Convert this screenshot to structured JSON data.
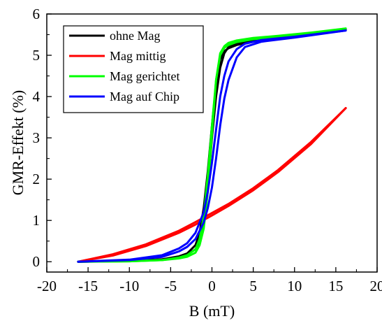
{
  "chart_data": {
    "type": "line",
    "xlabel": "B (mT)",
    "ylabel": "GMR-Effekt (%)",
    "xlim": [
      -20,
      20
    ],
    "ylim": [
      -0.25,
      6
    ],
    "xticks": [
      -20,
      -15,
      -10,
      -5,
      0,
      5,
      10,
      15,
      20
    ],
    "yticks": [
      0,
      1,
      2,
      3,
      4,
      5,
      6
    ],
    "x_tick_labels": [
      "-20",
      "-15",
      "-10",
      "-5",
      "0",
      "5",
      "10",
      "15",
      "20"
    ],
    "y_tick_labels": [
      "0",
      "1",
      "2",
      "3",
      "4",
      "5",
      "6"
    ],
    "grid": false,
    "legend_position": "top-left",
    "series": [
      {
        "name": "ohne Mag",
        "color": "#000000",
        "up": [
          [
            -16.2,
            0.0
          ],
          [
            -10,
            0.02
          ],
          [
            -6,
            0.06
          ],
          [
            -4,
            0.13
          ],
          [
            -3,
            0.2
          ],
          [
            -2,
            0.4
          ],
          [
            -1.5,
            0.7
          ],
          [
            -1,
            1.3
          ],
          [
            -0.5,
            2.2
          ],
          [
            0,
            3.3
          ],
          [
            0.5,
            4.3
          ],
          [
            1,
            4.9
          ],
          [
            1.5,
            5.1
          ],
          [
            2,
            5.17
          ],
          [
            3,
            5.25
          ],
          [
            5,
            5.33
          ],
          [
            8,
            5.4
          ],
          [
            12,
            5.5
          ],
          [
            16.2,
            5.62
          ]
        ],
        "down": [
          [
            16.2,
            5.62
          ],
          [
            12,
            5.52
          ],
          [
            8,
            5.42
          ],
          [
            5,
            5.35
          ],
          [
            3,
            5.28
          ],
          [
            2,
            5.2
          ],
          [
            1.5,
            5.05
          ],
          [
            1,
            4.7
          ],
          [
            0.5,
            4.0
          ],
          [
            0,
            3.0
          ],
          [
            -0.5,
            1.8
          ],
          [
            -1,
            0.9
          ],
          [
            -1.5,
            0.5
          ],
          [
            -2,
            0.3
          ],
          [
            -3,
            0.17
          ],
          [
            -4,
            0.11
          ],
          [
            -6,
            0.05
          ],
          [
            -10,
            0.02
          ],
          [
            -16.2,
            0.0
          ]
        ]
      },
      {
        "name": "Mag mittig",
        "color": "#ff0000",
        "up": [
          [
            -16.2,
            0.0
          ],
          [
            -12,
            0.18
          ],
          [
            -8,
            0.42
          ],
          [
            -4,
            0.75
          ],
          [
            -2,
            0.96
          ],
          [
            0,
            1.18
          ],
          [
            2,
            1.4
          ],
          [
            5,
            1.78
          ],
          [
            8,
            2.22
          ],
          [
            12,
            2.9
          ],
          [
            16.2,
            3.72
          ]
        ],
        "down": [
          [
            16.2,
            3.72
          ],
          [
            12,
            2.85
          ],
          [
            8,
            2.17
          ],
          [
            5,
            1.73
          ],
          [
            2,
            1.35
          ],
          [
            0,
            1.12
          ],
          [
            -2,
            0.9
          ],
          [
            -4,
            0.7
          ],
          [
            -8,
            0.38
          ],
          [
            -12,
            0.15
          ],
          [
            -16.2,
            0.0
          ]
        ]
      },
      {
        "name": "Mag gerichtet",
        "color": "#00ff00",
        "up": [
          [
            -16.2,
            0.0
          ],
          [
            -10,
            0.01
          ],
          [
            -6,
            0.04
          ],
          [
            -4,
            0.1
          ],
          [
            -3,
            0.16
          ],
          [
            -2,
            0.3
          ],
          [
            -1.5,
            0.55
          ],
          [
            -1,
            1.1
          ],
          [
            -0.5,
            2.1
          ],
          [
            0,
            3.3
          ],
          [
            0.5,
            4.4
          ],
          [
            1,
            5.0
          ],
          [
            1.5,
            5.18
          ],
          [
            2,
            5.25
          ],
          [
            3,
            5.32
          ],
          [
            5,
            5.39
          ],
          [
            8,
            5.45
          ],
          [
            12,
            5.53
          ],
          [
            16.2,
            5.65
          ]
        ],
        "down": [
          [
            16.2,
            5.65
          ],
          [
            12,
            5.55
          ],
          [
            8,
            5.47
          ],
          [
            5,
            5.42
          ],
          [
            3,
            5.36
          ],
          [
            2,
            5.3
          ],
          [
            1.5,
            5.22
          ],
          [
            1,
            5.05
          ],
          [
            0.5,
            4.4
          ],
          [
            0,
            3.1
          ],
          [
            -0.5,
            1.7
          ],
          [
            -1,
            0.8
          ],
          [
            -1.5,
            0.4
          ],
          [
            -2,
            0.22
          ],
          [
            -3,
            0.12
          ],
          [
            -4,
            0.08
          ],
          [
            -6,
            0.04
          ],
          [
            -10,
            0.01
          ],
          [
            -16.2,
            0.0
          ]
        ]
      },
      {
        "name": "Mag auf Chip",
        "color": "#0000ff",
        "up": [
          [
            -16.2,
            0.0
          ],
          [
            -10,
            0.04
          ],
          [
            -6,
            0.12
          ],
          [
            -4,
            0.25
          ],
          [
            -3,
            0.36
          ],
          [
            -2,
            0.55
          ],
          [
            -1,
            0.95
          ],
          [
            -0.5,
            1.3
          ],
          [
            0,
            1.8
          ],
          [
            0.5,
            2.5
          ],
          [
            1,
            3.3
          ],
          [
            1.5,
            3.95
          ],
          [
            2,
            4.4
          ],
          [
            3,
            4.95
          ],
          [
            4,
            5.2
          ],
          [
            6,
            5.33
          ],
          [
            10,
            5.43
          ],
          [
            16.2,
            5.6
          ]
        ],
        "down": [
          [
            16.2,
            5.6
          ],
          [
            10,
            5.45
          ],
          [
            6,
            5.37
          ],
          [
            4,
            5.28
          ],
          [
            3,
            5.15
          ],
          [
            2,
            4.85
          ],
          [
            1.5,
            4.5
          ],
          [
            1,
            4.0
          ],
          [
            0.5,
            3.2
          ],
          [
            0,
            2.4
          ],
          [
            -0.5,
            1.7
          ],
          [
            -1,
            1.2
          ],
          [
            -2,
            0.7
          ],
          [
            -3,
            0.45
          ],
          [
            -4,
            0.32
          ],
          [
            -6,
            0.16
          ],
          [
            -10,
            0.05
          ],
          [
            -16.2,
            0.0
          ]
        ]
      }
    ]
  }
}
